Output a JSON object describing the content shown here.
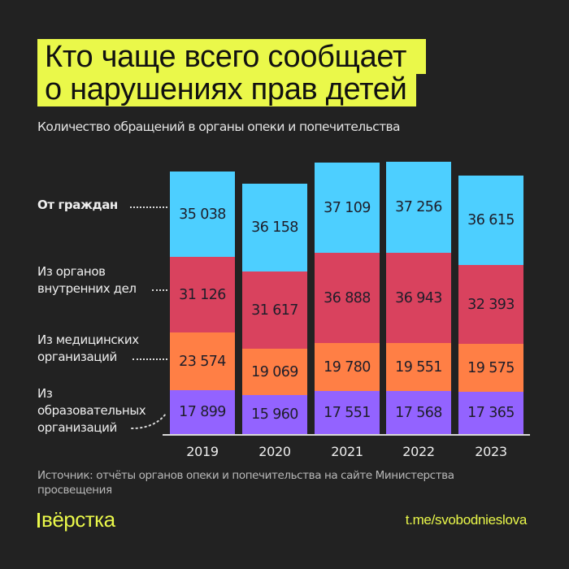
{
  "title": {
    "line1": "Кто чаще всего сообщает",
    "line2": "о нарушениях прав детей"
  },
  "subtitle": "Количество обращений в органы опеки и попечительства",
  "colors": {
    "background": "#222222",
    "highlight": "#eaf84a",
    "citizens": "#4dcfff",
    "police": "#d9425e",
    "medical": "#ff7f45",
    "education": "#9363ff"
  },
  "legend_labels": [
    {
      "text": "От граждан",
      "bold": true
    },
    {
      "text": "Из органов\nвнутренних дел",
      "bold": false
    },
    {
      "text": "Из медицинских\nорганизаций",
      "bold": false
    },
    {
      "text": "Из\nобразовательных\nорганизаций",
      "bold": false
    }
  ],
  "chart_data": {
    "type": "bar",
    "stacked": true,
    "title": "Кто чаще всего сообщает о нарушениях прав детей",
    "subtitle": "Количество обращений в органы опеки и попечительства",
    "xlabel": "",
    "ylabel": "",
    "categories": [
      "2019",
      "2020",
      "2021",
      "2022",
      "2023"
    ],
    "series": [
      {
        "name": "Из образовательных организаций",
        "color": "#9363ff",
        "values": [
          17899,
          15960,
          17551,
          17568,
          17365
        ],
        "labels": [
          "17 899",
          "15 960",
          "17 551",
          "17 568",
          "17 365"
        ]
      },
      {
        "name": "Из медицинских организаций",
        "color": "#ff7f45",
        "values": [
          23574,
          19069,
          19780,
          19551,
          19575
        ],
        "labels": [
          "23 574",
          "19 069",
          "19 780",
          "19 551",
          "19 575"
        ]
      },
      {
        "name": "Из органов внутренних дел",
        "color": "#d9425e",
        "values": [
          31126,
          31617,
          36888,
          36943,
          32393
        ],
        "labels": [
          "31 126",
          "31 617",
          "36 888",
          "36 943",
          "32 393"
        ]
      },
      {
        "name": "От граждан",
        "color": "#4dcfff",
        "values": [
          35038,
          36158,
          37109,
          37256,
          36615
        ],
        "labels": [
          "35 038",
          "36 158",
          "37 109",
          "37 256",
          "36 615"
        ]
      }
    ],
    "grid": false,
    "legend_position": "left, inline labels with dotted leaders"
  },
  "source": "Источник: отчёты органов опеки и попечительства на сайте Министерства просвещения",
  "footer": {
    "logo": "вёрстка",
    "link": "t.me/svobodnieslova"
  }
}
